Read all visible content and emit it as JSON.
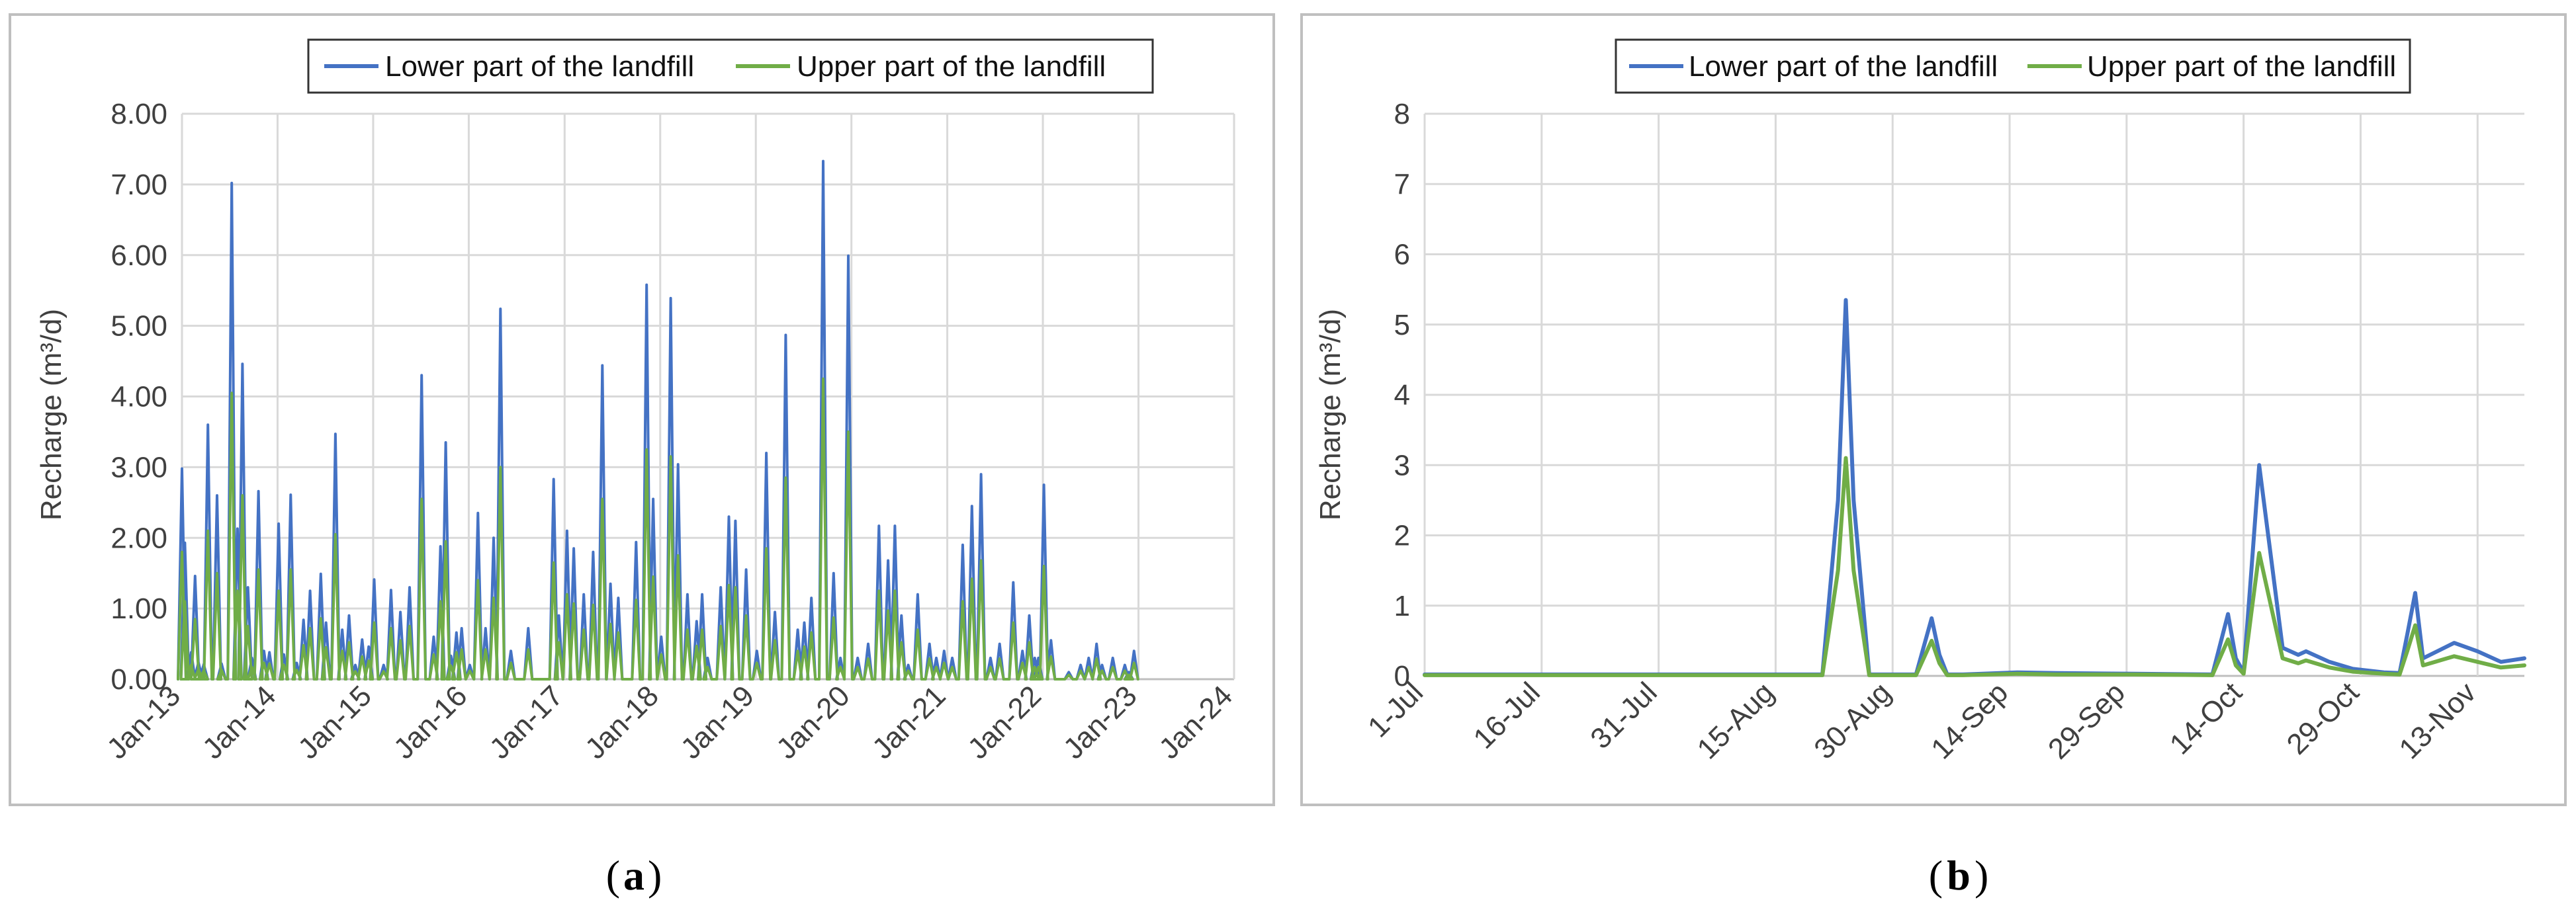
{
  "colors": {
    "lower": "#4472C4",
    "upper": "#70AD47",
    "grid": "#D9D9D9",
    "frame": "#BFBFBF"
  },
  "chart_data": [
    {
      "type": "line",
      "panel": "(a)",
      "panel_letter": "a",
      "ylabel": "Recharge (m³/d)",
      "ylim": [
        0,
        8
      ],
      "yticks": [
        "0.00",
        "1.00",
        "2.00",
        "3.00",
        "4.00",
        "5.00",
        "6.00",
        "7.00",
        "8.00"
      ],
      "xticks": [
        "Jan-13",
        "Jan-14",
        "Jan-15",
        "Jan-16",
        "Jan-17",
        "Jan-18",
        "Jan-19",
        "Jan-20",
        "Jan-21",
        "Jan-22",
        "Jan-23",
        "Jan-24"
      ],
      "xlim": [
        "2013-01-01",
        "2024-01-01"
      ],
      "grid": true,
      "legend": "top-center",
      "series": [
        {
          "name": "Lower part of the landfill",
          "x": [
            "2013-01-01",
            "2013-01-12",
            "2013-02-05",
            "2013-02-20",
            "2013-03-05",
            "2013-03-25",
            "2013-04-10",
            "2013-05-15",
            "2013-06-01",
            "2013-07-10",
            "2013-08-01",
            "2013-08-20",
            "2013-09-10",
            "2013-09-25",
            "2013-10-20",
            "2013-11-10",
            "2013-12-01",
            "2014-01-05",
            "2014-01-25",
            "2014-02-20",
            "2014-03-15",
            "2014-04-10",
            "2014-05-05",
            "2014-06-15",
            "2014-07-05",
            "2014-08-10",
            "2014-09-05",
            "2014-10-01",
            "2014-10-25",
            "2014-11-20",
            "2014-12-15",
            "2015-01-05",
            "2015-02-10",
            "2015-03-10",
            "2015-04-15",
            "2015-05-20",
            "2015-07-05",
            "2015-08-20",
            "2015-09-15",
            "2015-10-05",
            "2015-10-25",
            "2015-11-15",
            "2015-12-05",
            "2016-01-05",
            "2016-02-05",
            "2016-03-05",
            "2016-04-05",
            "2016-05-01",
            "2016-06-10",
            "2016-08-15",
            "2016-11-20",
            "2016-12-10",
            "2017-01-10",
            "2017-02-05",
            "2017-03-15",
            "2017-04-20",
            "2017-05-25",
            "2017-06-25",
            "2017-07-25",
            "2017-10-01",
            "2017-11-10",
            "2017-12-05",
            "2018-01-05",
            "2018-02-10",
            "2018-03-10",
            "2018-04-15",
            "2018-05-20",
            "2018-06-10",
            "2018-07-01",
            "2018-08-20",
            "2018-09-20",
            "2018-10-15",
            "2018-11-25",
            "2019-01-05",
            "2019-02-10",
            "2019-03-15",
            "2019-04-25",
            "2019-06-10",
            "2019-07-05",
            "2019-08-01",
            "2019-09-15",
            "2019-10-25",
            "2019-11-20",
            "2019-12-20",
            "2020-01-25",
            "2020-03-05",
            "2020-04-15",
            "2020-05-20",
            "2020-06-15",
            "2020-07-10",
            "2020-08-05",
            "2020-09-10",
            "2020-10-25",
            "2020-11-20",
            "2020-12-20",
            "2021-01-20",
            "2021-03-01",
            "2021-04-05",
            "2021-05-10",
            "2021-06-15",
            "2021-07-20",
            "2021-09-10",
            "2021-10-15",
            "2021-11-10",
            "2021-12-01",
            "2021-12-15",
            "2022-01-05",
            "2022-02-01",
            "2022-04-10",
            "2022-05-25",
            "2022-06-25",
            "2022-07-25",
            "2022-08-15",
            "2022-09-25",
            "2022-11-10",
            "2022-11-25",
            "2022-12-15"
          ],
          "y": [
            2.98,
            1.93,
            0.38,
            1.46,
            0.24,
            0.21,
            3.6,
            2.6,
            0.22,
            7.02,
            2.13,
            4.46,
            1.3,
            0.3,
            2.66,
            0.4,
            0.38,
            2.2,
            0.35,
            2.61,
            0.23,
            0.84,
            1.25,
            1.49,
            0.8,
            3.47,
            0.7,
            0.9,
            0.2,
            0.56,
            0.46,
            1.41,
            0.2,
            1.26,
            0.95,
            1.3,
            4.3,
            0.6,
            1.88,
            3.35,
            0.33,
            0.66,
            0.72,
            0.2,
            2.35,
            0.72,
            2.0,
            5.24,
            0.4,
            0.72,
            2.83,
            0.9,
            2.1,
            1.85,
            1.2,
            1.8,
            4.44,
            1.35,
            1.15,
            1.94,
            5.58,
            2.55,
            0.6,
            5.39,
            3.04,
            1.2,
            0.82,
            1.2,
            0.3,
            1.3,
            2.3,
            2.24,
            1.55,
            0.4,
            3.2,
            0.95,
            4.87,
            0.7,
            0.8,
            1.15,
            7.33,
            1.5,
            0.3,
            5.99,
            0.3,
            0.5,
            2.17,
            1.68,
            2.17,
            0.9,
            0.2,
            1.2,
            0.5,
            0.3,
            0.4,
            0.3,
            1.9,
            2.45,
            2.9,
            0.3,
            0.5,
            1.37,
            0.4,
            0.9,
            0.3,
            0.3,
            2.75,
            0.55,
            0.1,
            0.2,
            0.3,
            0.5,
            0.2,
            0.3,
            0.2,
            0.1,
            0.4
          ]
        },
        {
          "name": "Upper part of the landfill",
          "x": [
            "2013-01-01",
            "2013-01-12",
            "2013-02-05",
            "2013-02-20",
            "2013-03-05",
            "2013-03-25",
            "2013-04-10",
            "2013-05-15",
            "2013-06-01",
            "2013-07-10",
            "2013-08-01",
            "2013-08-20",
            "2013-09-10",
            "2013-09-25",
            "2013-10-20",
            "2013-11-10",
            "2013-12-01",
            "2014-01-05",
            "2014-01-25",
            "2014-02-20",
            "2014-03-15",
            "2014-04-10",
            "2014-05-05",
            "2014-06-15",
            "2014-07-05",
            "2014-08-10",
            "2014-09-05",
            "2014-10-01",
            "2014-10-25",
            "2014-11-20",
            "2014-12-15",
            "2015-01-05",
            "2015-02-10",
            "2015-03-10",
            "2015-04-15",
            "2015-05-20",
            "2015-07-05",
            "2015-08-20",
            "2015-09-15",
            "2015-10-05",
            "2015-10-25",
            "2015-11-15",
            "2015-12-05",
            "2016-01-05",
            "2016-02-05",
            "2016-03-05",
            "2016-04-05",
            "2016-05-01",
            "2016-06-10",
            "2016-08-15",
            "2016-11-20",
            "2016-12-10",
            "2017-01-10",
            "2017-02-05",
            "2017-03-15",
            "2017-04-20",
            "2017-05-25",
            "2017-06-25",
            "2017-07-25",
            "2017-10-01",
            "2017-11-10",
            "2017-12-05",
            "2018-01-05",
            "2018-02-10",
            "2018-03-10",
            "2018-04-15",
            "2018-05-20",
            "2018-06-10",
            "2018-07-01",
            "2018-08-20",
            "2018-09-20",
            "2018-10-15",
            "2018-11-25",
            "2019-01-05",
            "2019-02-10",
            "2019-03-15",
            "2019-04-25",
            "2019-06-10",
            "2019-07-05",
            "2019-08-01",
            "2019-09-15",
            "2019-10-25",
            "2019-11-20",
            "2019-12-20",
            "2020-01-25",
            "2020-03-05",
            "2020-04-15",
            "2020-05-20",
            "2020-06-15",
            "2020-07-10",
            "2020-08-05",
            "2020-09-10",
            "2020-10-25",
            "2020-11-20",
            "2020-12-20",
            "2021-01-20",
            "2021-03-01",
            "2021-04-05",
            "2021-05-10",
            "2021-06-15",
            "2021-07-20",
            "2021-09-10",
            "2021-10-15",
            "2021-11-10",
            "2021-12-01",
            "2021-12-15",
            "2022-01-05",
            "2022-02-01",
            "2022-04-10",
            "2022-05-25",
            "2022-06-25",
            "2022-07-25",
            "2022-08-15",
            "2022-09-25",
            "2022-11-10",
            "2022-11-25",
            "2022-12-15"
          ],
          "y": [
            1.8,
            1.1,
            0.2,
            0.85,
            0.14,
            0.12,
            2.1,
            1.5,
            0.13,
            4.05,
            1.25,
            2.6,
            0.75,
            0.17,
            1.55,
            0.23,
            0.22,
            1.25,
            0.2,
            1.55,
            0.13,
            0.48,
            0.72,
            0.86,
            0.45,
            2.05,
            0.4,
            0.52,
            0.11,
            0.32,
            0.26,
            0.8,
            0.11,
            0.72,
            0.55,
            0.75,
            2.55,
            0.35,
            1.1,
            1.95,
            0.19,
            0.38,
            0.42,
            0.12,
            1.4,
            0.42,
            1.15,
            3.0,
            0.23,
            0.42,
            1.65,
            0.52,
            1.2,
            1.07,
            0.7,
            1.05,
            2.55,
            0.78,
            0.66,
            1.12,
            3.25,
            1.45,
            0.35,
            3.15,
            1.75,
            0.7,
            0.47,
            0.7,
            0.17,
            0.75,
            1.33,
            1.3,
            0.9,
            0.23,
            1.85,
            0.55,
            2.85,
            0.4,
            0.46,
            0.66,
            4.25,
            0.87,
            0.17,
            3.5,
            0.17,
            0.29,
            1.25,
            0.97,
            1.25,
            0.52,
            0.12,
            0.7,
            0.29,
            0.17,
            0.23,
            0.17,
            1.1,
            1.42,
            1.68,
            0.17,
            0.29,
            0.8,
            0.23,
            0.52,
            0.17,
            0.17,
            1.6,
            0.32,
            0.06,
            0.12,
            0.17,
            0.29,
            0.12,
            0.17,
            0.12,
            0.06,
            0.23
          ]
        }
      ]
    },
    {
      "type": "line",
      "panel": "(b)",
      "panel_letter": "b",
      "ylabel": "Recharge (m³/d)",
      "ylim": [
        0,
        8
      ],
      "yticks": [
        "0",
        "1",
        "2",
        "3",
        "4",
        "5",
        "6",
        "7",
        "8"
      ],
      "xticks": [
        "1-Jul",
        "16-Jul",
        "31-Jul",
        "15-Aug",
        "30-Aug",
        "14-Sep",
        "29-Sep",
        "14-Oct",
        "29-Oct",
        "13-Nov"
      ],
      "xlim": [
        "1-Jul",
        "19-Nov"
      ],
      "grid": true,
      "legend": "top-center",
      "series": [
        {
          "name": "Lower part of the landfill",
          "x": [
            "1-Jul",
            "20-Jul",
            "10-Aug",
            "21-Aug",
            "23-Aug",
            "24-Aug",
            "25-Aug",
            "27-Aug",
            "2-Sep",
            "4-Sep",
            "5-Sep",
            "6-Sep",
            "8-Sep",
            "15-Sep",
            "20-Sep",
            "30-Sep",
            "10-Oct",
            "12-Oct",
            "13-Oct",
            "14-Oct",
            "15-Oct",
            "16-Oct",
            "19-Oct",
            "21-Oct",
            "22-Oct",
            "25-Oct",
            "28-Oct",
            "1-Nov",
            "3-Nov",
            "4-Nov",
            "5-Nov",
            "6-Nov",
            "10-Nov",
            "13-Nov",
            "16-Nov",
            "19-Nov"
          ],
          "y": [
            0.02,
            0.02,
            0.02,
            0.02,
            2.5,
            5.35,
            2.5,
            0.02,
            0.02,
            0.82,
            0.3,
            0.02,
            0.02,
            0.05,
            0.04,
            0.03,
            0.02,
            0.88,
            0.25,
            0.05,
            1.5,
            3.0,
            0.4,
            0.3,
            0.35,
            0.2,
            0.1,
            0.05,
            0.04,
            0.6,
            1.18,
            0.25,
            0.47,
            0.35,
            0.2,
            0.25
          ]
        },
        {
          "name": "Upper part of the landfill",
          "x": [
            "1-Jul",
            "20-Jul",
            "10-Aug",
            "21-Aug",
            "23-Aug",
            "24-Aug",
            "25-Aug",
            "27-Aug",
            "2-Sep",
            "4-Sep",
            "5-Sep",
            "6-Sep",
            "8-Sep",
            "15-Sep",
            "20-Sep",
            "30-Sep",
            "10-Oct",
            "12-Oct",
            "13-Oct",
            "14-Oct",
            "15-Oct",
            "16-Oct",
            "19-Oct",
            "21-Oct",
            "22-Oct",
            "25-Oct",
            "28-Oct",
            "1-Nov",
            "3-Nov",
            "4-Nov",
            "5-Nov",
            "6-Nov",
            "10-Nov",
            "13-Nov",
            "16-Nov",
            "19-Nov"
          ],
          "y": [
            0.01,
            0.01,
            0.01,
            0.01,
            1.5,
            3.1,
            1.5,
            0.01,
            0.01,
            0.5,
            0.18,
            0.01,
            0.01,
            0.03,
            0.02,
            0.02,
            0.01,
            0.52,
            0.15,
            0.03,
            0.9,
            1.75,
            0.25,
            0.18,
            0.22,
            0.12,
            0.06,
            0.03,
            0.02,
            0.36,
            0.72,
            0.15,
            0.28,
            0.2,
            0.12,
            0.15
          ]
        }
      ]
    }
  ]
}
